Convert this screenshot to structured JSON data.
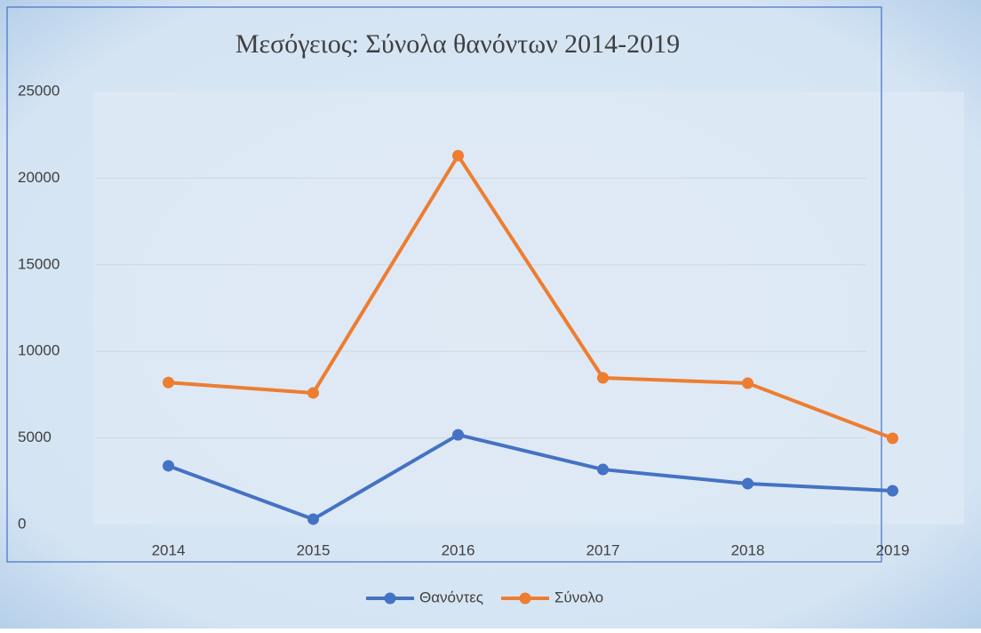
{
  "chart_data": {
    "type": "line",
    "title": "Μεσόγειος: Σύνολα θανόντων 2014-2019",
    "categories": [
      "2014",
      "2015",
      "2016",
      "2017",
      "2018",
      "2019"
    ],
    "series": [
      {
        "name": "Θανόντες",
        "color": "#4472c4",
        "values": [
          3390,
          310,
          5180,
          3180,
          2360,
          1950
        ]
      },
      {
        "name": "Σύνολο",
        "color": "#ed7d31",
        "values": [
          8200,
          7600,
          21300,
          8470,
          8160,
          4980
        ]
      }
    ],
    "ylim": [
      0,
      25000
    ],
    "yticks": [
      0,
      5000,
      10000,
      15000,
      20000,
      25000
    ],
    "grid": true,
    "legend": "bottom"
  }
}
